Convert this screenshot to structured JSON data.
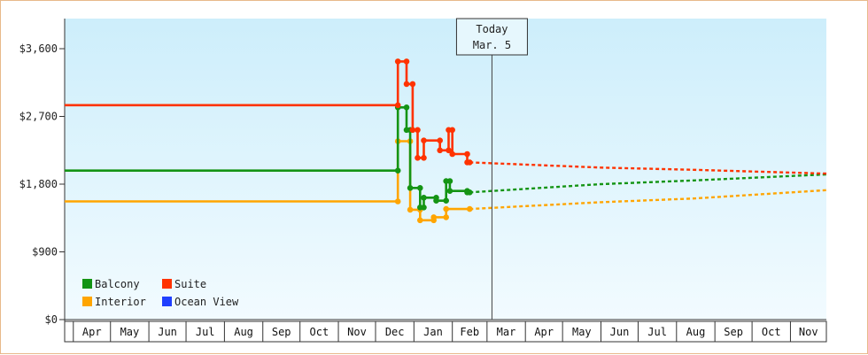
{
  "chart_data": {
    "type": "line",
    "currency_prefix": "$",
    "today": {
      "label": "Today",
      "date_label": "Mar. 5",
      "date": "2025-03-05"
    },
    "x_range": [
      "2024-03-25",
      "2025-11-30"
    ],
    "ylim": [
      0,
      4000
    ],
    "yticks": [
      0,
      900,
      1800,
      2700,
      3600
    ],
    "ytick_labels": [
      "$0",
      "$900",
      "$1,800",
      "$2,700",
      "$3,600"
    ],
    "grid": false,
    "legend_position": "bottom-left",
    "months": [
      {
        "label": "Apr",
        "date": "2024-04-01"
      },
      {
        "label": "May",
        "date": "2024-05-01"
      },
      {
        "label": "Jun",
        "date": "2024-06-01"
      },
      {
        "label": "Jul",
        "date": "2024-07-01"
      },
      {
        "label": "Aug",
        "date": "2024-08-01"
      },
      {
        "label": "Sep",
        "date": "2024-09-01"
      },
      {
        "label": "Oct",
        "date": "2024-10-01"
      },
      {
        "label": "Nov",
        "date": "2024-11-01"
      },
      {
        "label": "Dec",
        "date": "2024-12-01"
      },
      {
        "label": "Jan",
        "date": "2025-01-01"
      },
      {
        "label": "Feb",
        "date": "2025-02-01"
      },
      {
        "label": "Mar",
        "date": "2025-03-01"
      },
      {
        "label": "Apr",
        "date": "2025-04-01"
      },
      {
        "label": "May",
        "date": "2025-05-01"
      },
      {
        "label": "Jun",
        "date": "2025-06-01"
      },
      {
        "label": "Jul",
        "date": "2025-07-01"
      },
      {
        "label": "Aug",
        "date": "2025-08-01"
      },
      {
        "label": "Sep",
        "date": "2025-09-01"
      },
      {
        "label": "Oct",
        "date": "2025-10-01"
      },
      {
        "label": "Nov",
        "date": "2025-11-01"
      }
    ],
    "series": [
      {
        "name": "Balcony",
        "color": "#149414",
        "history": [
          [
            "2024-03-25",
            1980
          ],
          [
            "2024-12-19",
            1980
          ],
          [
            "2024-12-19",
            2820
          ],
          [
            "2024-12-26",
            2820
          ],
          [
            "2024-12-26",
            2520
          ],
          [
            "2024-12-29",
            2520
          ],
          [
            "2024-12-29",
            1750
          ],
          [
            "2025-01-06",
            1750
          ],
          [
            "2025-01-06",
            1490
          ],
          [
            "2025-01-09",
            1490
          ],
          [
            "2025-01-09",
            1620
          ],
          [
            "2025-01-19",
            1620
          ],
          [
            "2025-01-19",
            1580
          ],
          [
            "2025-01-27",
            1580
          ],
          [
            "2025-01-27",
            1840
          ],
          [
            "2025-01-30",
            1840
          ],
          [
            "2025-01-30",
            1710
          ],
          [
            "2025-02-13",
            1710
          ],
          [
            "2025-02-13",
            1690
          ],
          [
            "2025-02-15",
            1690
          ]
        ],
        "forecast": [
          [
            "2025-02-15",
            1690
          ],
          [
            "2025-06-01",
            1800
          ],
          [
            "2025-08-15",
            1850
          ],
          [
            "2025-11-30",
            1930
          ]
        ]
      },
      {
        "name": "Suite",
        "color": "#ff3300",
        "history": [
          [
            "2024-03-25",
            2850
          ],
          [
            "2024-12-19",
            2850
          ],
          [
            "2024-12-19",
            3430
          ],
          [
            "2024-12-26",
            3430
          ],
          [
            "2024-12-26",
            3130
          ],
          [
            "2024-12-31",
            3130
          ],
          [
            "2024-12-31",
            2520
          ],
          [
            "2025-01-04",
            2520
          ],
          [
            "2025-01-04",
            2150
          ],
          [
            "2025-01-09",
            2150
          ],
          [
            "2025-01-09",
            2380
          ],
          [
            "2025-01-22",
            2380
          ],
          [
            "2025-01-22",
            2250
          ],
          [
            "2025-01-29",
            2250
          ],
          [
            "2025-01-29",
            2520
          ],
          [
            "2025-02-01",
            2520
          ],
          [
            "2025-02-01",
            2200
          ],
          [
            "2025-02-13",
            2200
          ],
          [
            "2025-02-13",
            2090
          ],
          [
            "2025-02-15",
            2090
          ]
        ],
        "forecast": [
          [
            "2025-02-15",
            2090
          ],
          [
            "2025-06-01",
            2020
          ],
          [
            "2025-08-15",
            1990
          ],
          [
            "2025-11-30",
            1940
          ]
        ]
      },
      {
        "name": "Interior",
        "color": "#ffa500",
        "history": [
          [
            "2024-03-25",
            1570
          ],
          [
            "2024-12-19",
            1570
          ],
          [
            "2024-12-19",
            2370
          ],
          [
            "2024-12-29",
            2370
          ],
          [
            "2024-12-29",
            1460
          ],
          [
            "2025-01-06",
            1460
          ],
          [
            "2025-01-06",
            1320
          ],
          [
            "2025-01-17",
            1320
          ],
          [
            "2025-01-17",
            1360
          ],
          [
            "2025-01-27",
            1360
          ],
          [
            "2025-01-27",
            1470
          ],
          [
            "2025-02-15",
            1470
          ]
        ],
        "forecast": [
          [
            "2025-02-15",
            1470
          ],
          [
            "2025-06-01",
            1560
          ],
          [
            "2025-08-15",
            1610
          ],
          [
            "2025-11-30",
            1720
          ]
        ]
      },
      {
        "name": "Ocean View",
        "color": "#1f3fff",
        "history": [],
        "forecast": []
      }
    ]
  }
}
